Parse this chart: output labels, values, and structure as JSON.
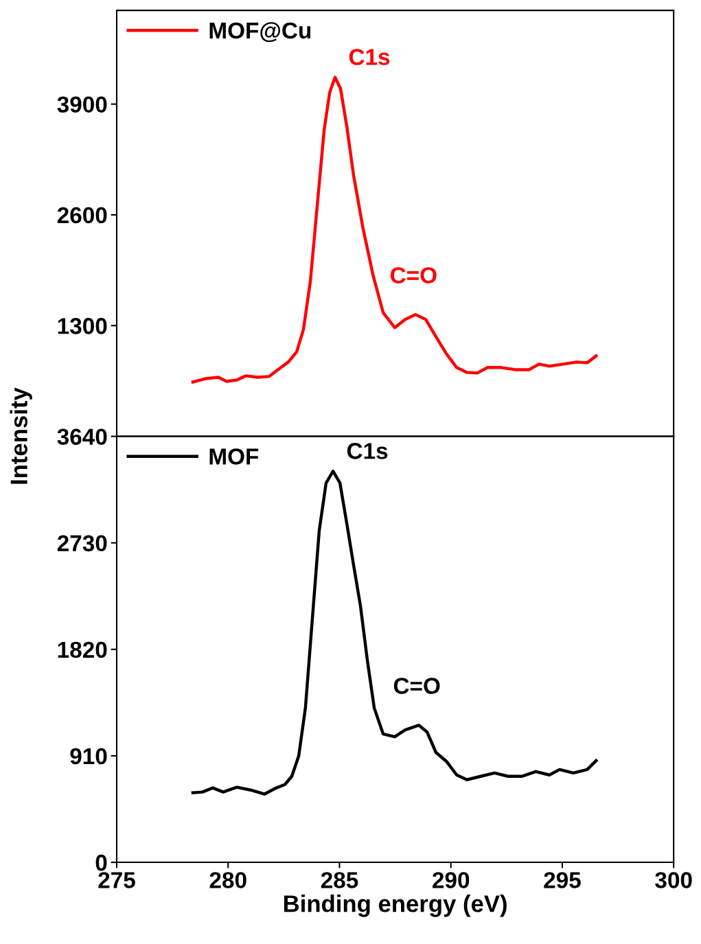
{
  "chart_data": [
    {
      "type": "line",
      "ylabel": "Intensity",
      "x": [
        278.42,
        279.0,
        279.56,
        279.93,
        280.39,
        280.8,
        281.32,
        281.84,
        282.24,
        282.7,
        283.08,
        283.38,
        283.69,
        284.0,
        284.31,
        284.56,
        284.8,
        285.05,
        285.33,
        285.63,
        286.04,
        286.5,
        286.96,
        287.48,
        287.95,
        288.41,
        288.87,
        289.33,
        289.8,
        290.26,
        290.72,
        291.18,
        291.65,
        292.26,
        292.88,
        293.5,
        293.96,
        294.42,
        295.04,
        295.65,
        296.12,
        296.52
      ],
      "series": [
        {
          "name": "MOF@Cu",
          "color": "#ff0000",
          "values": [
            638,
            678,
            694,
            646,
            662,
            711,
            694,
            703,
            783,
            872,
            993,
            1252,
            1817,
            2705,
            3593,
            4037,
            4215,
            4078,
            3634,
            3068,
            2463,
            1898,
            1453,
            1276,
            1373,
            1429,
            1373,
            1171,
            969,
            808,
            751,
            743,
            808,
            808,
            783,
            783,
            848,
            824,
            848,
            872,
            864,
            945
          ]
        }
      ],
      "annotations": [
        "C1s",
        "C=O"
      ],
      "xlim": [
        275,
        300
      ],
      "ylim": [
        0,
        5000
      ],
      "yticks": [
        1300,
        2600,
        3900
      ],
      "tick_labels": "y",
      "legend": "top left",
      "line_style": "solid",
      "grid": false
    },
    {
      "type": "line",
      "xlabel": "Binding energy (eV)",
      "x": [
        278.42,
        278.85,
        279.31,
        279.78,
        280.39,
        281.01,
        281.63,
        282.09,
        282.55,
        282.86,
        283.17,
        283.47,
        283.78,
        284.09,
        284.4,
        284.71,
        285.02,
        285.33,
        285.63,
        285.94,
        286.25,
        286.56,
        286.96,
        287.48,
        287.95,
        288.56,
        288.93,
        289.33,
        289.8,
        290.26,
        290.72,
        291.34,
        291.96,
        292.57,
        293.19,
        293.81,
        294.42,
        294.88,
        295.5,
        296.12,
        296.52
      ],
      "series": [
        {
          "name": "MOF",
          "color": "#000000",
          "values": [
            595,
            601,
            636,
            601,
            642,
            618,
            583,
            630,
            665,
            735,
            910,
            1318,
            2077,
            2835,
            3243,
            3342,
            3243,
            2893,
            2543,
            2193,
            1727,
            1318,
            1097,
            1073,
            1132,
            1172,
            1114,
            939,
            863,
            747,
            706,
            735,
            764,
            735,
            735,
            776,
            747,
            793,
            764,
            793,
            869
          ]
        }
      ],
      "annotations": [
        "C1s",
        "C=O"
      ],
      "xlim": [
        275,
        300
      ],
      "xticks": [
        275,
        280,
        285,
        290,
        295,
        300
      ],
      "ylim": [
        0,
        3640
      ],
      "yticks": [
        0,
        910,
        1820,
        2730,
        3640
      ],
      "legend": "top left",
      "line_style": "solid",
      "grid": false
    }
  ]
}
